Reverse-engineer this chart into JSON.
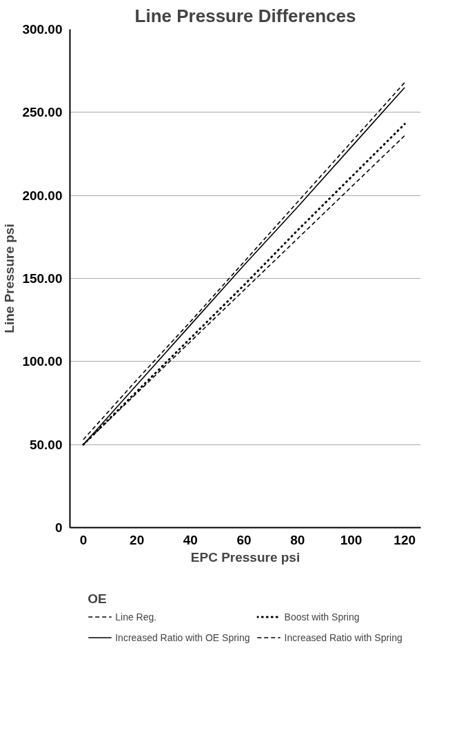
{
  "chart_data": {
    "type": "line",
    "title": "Line Pressure Differences",
    "xlabel": "EPC Pressure psi",
    "ylabel": "Line Pressure psi",
    "legend_title": "OE",
    "x": [
      0,
      20,
      40,
      60,
      80,
      100,
      120
    ],
    "series": [
      {
        "name": "Line Reg.",
        "color": "#000000",
        "line_style": "dashed",
        "values": [
          50,
          81,
          112,
          143,
          174,
          205,
          236
        ]
      },
      {
        "name": "Increased Ratio with OE Spring",
        "color": "#000000",
        "line_style": "solid",
        "values": [
          50,
          86,
          122,
          158,
          193,
          229,
          265
        ]
      },
      {
        "name": "Boost with Spring",
        "color": "#000000",
        "line_style": "dotted",
        "values": [
          50,
          82,
          114,
          146,
          179,
          211,
          243
        ]
      },
      {
        "name": "Increased Ratio with Spring",
        "color": "#000000",
        "line_style": "dashed",
        "values": [
          53,
          89,
          124,
          160,
          196,
          232,
          268
        ]
      }
    ],
    "xlim": [
      -5,
      126
    ],
    "xticks": [
      0,
      20,
      40,
      60,
      80,
      100,
      120
    ],
    "ylim": [
      0,
      300
    ],
    "yticks": [
      0,
      {
        "value": 50,
        "label": "50.00"
      },
      {
        "value": 100,
        "label": "100.00"
      },
      {
        "value": 150,
        "label": "150.00"
      },
      {
        "value": 200,
        "label": "200.00"
      },
      {
        "value": 250,
        "label": "250.00"
      },
      {
        "value": 300,
        "label": "300.00"
      }
    ],
    "grid": "y",
    "legend": "bottom",
    "marker": "none"
  }
}
